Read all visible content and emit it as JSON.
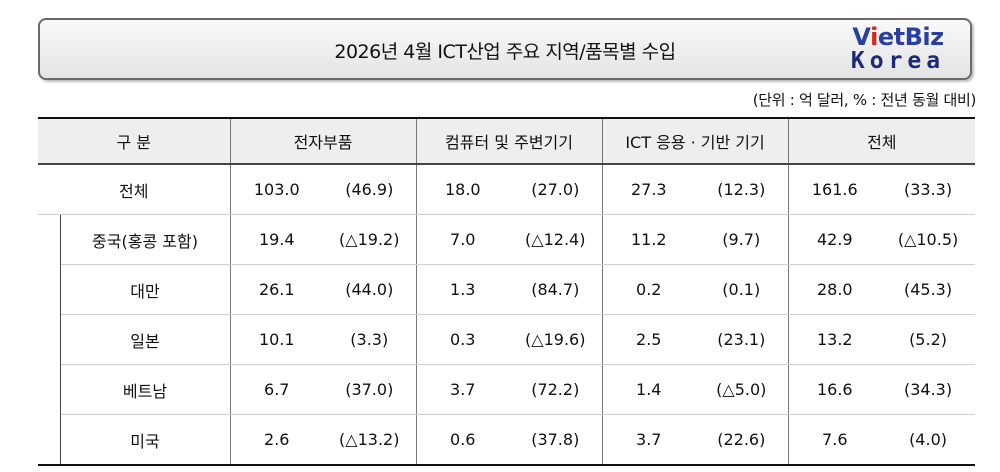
{
  "title": "2026년 4월 ICT산업 주요 지역/품목별 수입",
  "logo": {
    "part1": "V",
    "part2": "i",
    "part3": "etBiz",
    "part4": "Korea"
  },
  "unit_note": "(단위 : 억 달러, % : 전년 동월 대비)",
  "table": {
    "headers": [
      "구  분",
      "전자부품",
      "컴퓨터 및 주변기기",
      "ICT 응용 · 기반 기기",
      "전체"
    ],
    "total_row": {
      "label": "전체",
      "cells": [
        "103.0",
        "(46.9)",
        "18.0",
        "(27.0)",
        "27.3",
        "(12.3)",
        "161.6",
        "(33.3)"
      ]
    },
    "rows": [
      {
        "label": "중국(홍콩 포함)",
        "cells": [
          "19.4",
          "(△19.2)",
          "7.0",
          "(△12.4)",
          "11.2",
          "(9.7)",
          "42.9",
          "(△10.5)"
        ]
      },
      {
        "label": "대만",
        "cells": [
          "26.1",
          "(44.0)",
          "1.3",
          "(84.7)",
          "0.2",
          "(0.1)",
          "28.0",
          "(45.3)"
        ]
      },
      {
        "label": "일본",
        "cells": [
          "10.1",
          "(3.3)",
          "0.3",
          "(△19.6)",
          "2.5",
          "(23.1)",
          "13.2",
          "(5.2)"
        ]
      },
      {
        "label": "베트남",
        "cells": [
          "6.7",
          "(37.0)",
          "3.7",
          "(72.2)",
          "1.4",
          "(△5.0)",
          "16.6",
          "(34.3)"
        ]
      },
      {
        "label": "미국",
        "cells": [
          "2.6",
          "(△13.2)",
          "0.6",
          "(37.8)",
          "3.7",
          "(22.6)",
          "7.6",
          "(4.0)"
        ]
      }
    ]
  }
}
